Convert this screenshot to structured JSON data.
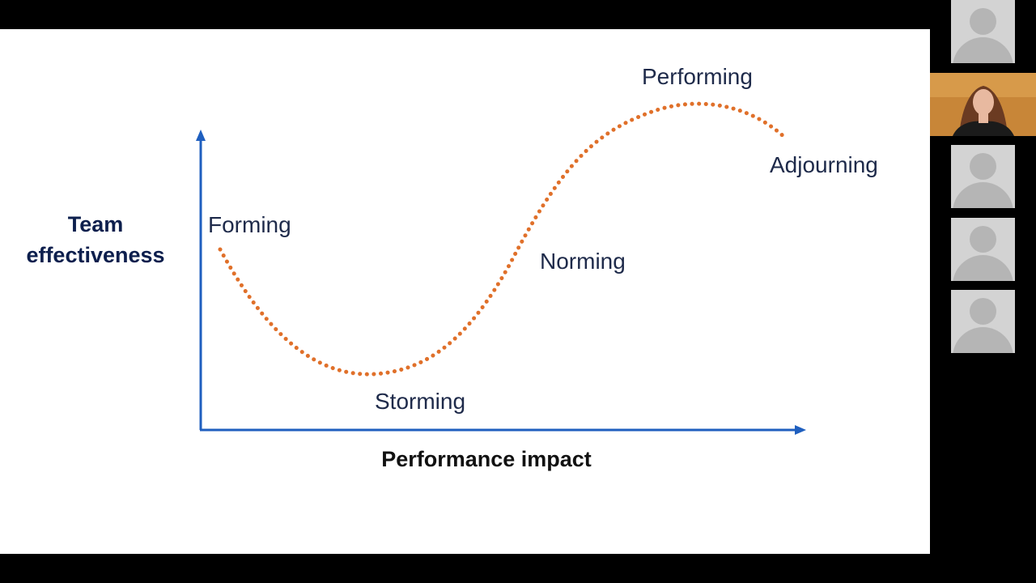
{
  "slide": {
    "y_axis_label": "Team\neffectiveness",
    "x_axis_label": "Performance impact",
    "stages": {
      "forming": "Forming",
      "storming": "Storming",
      "norming": "Norming",
      "performing": "Performing",
      "adjourning": "Adjourning"
    },
    "colors": {
      "axis": "#1f5fbf",
      "curve": "#e0702a",
      "stage_text": "#1e2a4a"
    }
  },
  "participants": [
    {
      "type": "avatar-placeholder"
    },
    {
      "type": "live-video"
    },
    {
      "type": "avatar-placeholder"
    },
    {
      "type": "avatar-placeholder"
    },
    {
      "type": "avatar-placeholder"
    }
  ]
}
